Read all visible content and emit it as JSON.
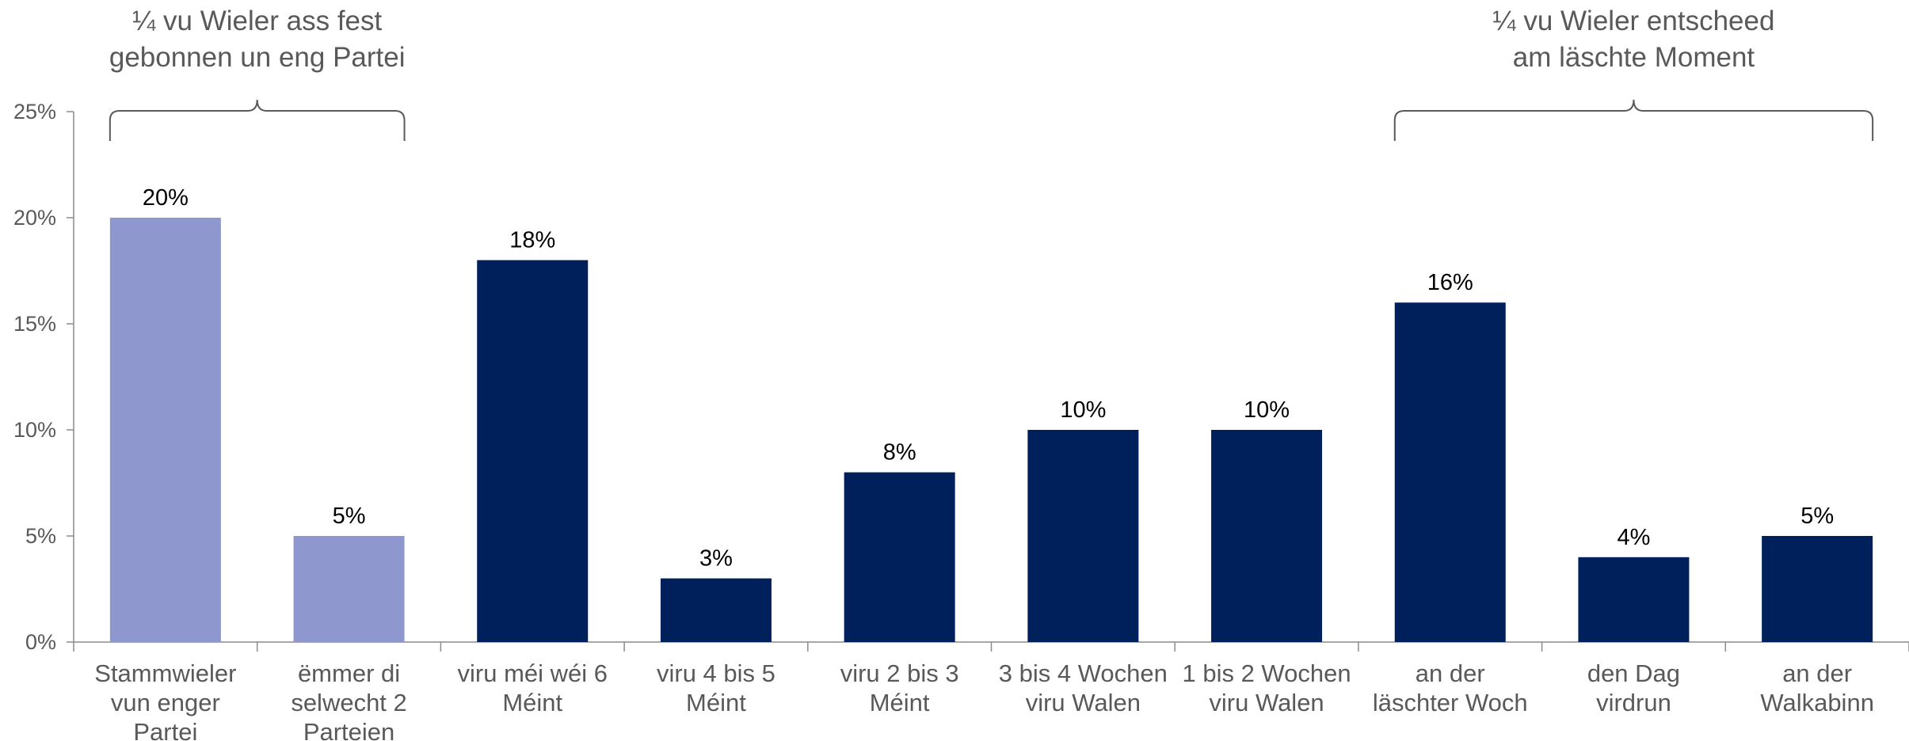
{
  "chart_data": {
    "type": "bar",
    "categories": [
      [
        "Stammwieler",
        "vun enger",
        "Partei"
      ],
      [
        "ëmmer di",
        "selwecht 2",
        "Parteien"
      ],
      [
        "viru méi wéi 6",
        "Méint"
      ],
      [
        "viru 4 bis 5",
        "Méint"
      ],
      [
        "viru 2 bis 3",
        "Méint"
      ],
      [
        "3 bis 4 Wochen",
        "viru Walen"
      ],
      [
        "1 bis 2 Wochen",
        "viru Walen"
      ],
      [
        "an der",
        "läschter Woch"
      ],
      [
        "den Dag",
        "virdrun"
      ],
      [
        "an der",
        "Walkabinn"
      ]
    ],
    "values": [
      20,
      5,
      18,
      3,
      8,
      10,
      10,
      16,
      4,
      5
    ],
    "data_labels": [
      "20%",
      "5%",
      "18%",
      "3%",
      "8%",
      "10%",
      "10%",
      "16%",
      "4%",
      "5%"
    ],
    "bar_colors": [
      "#8e98cf",
      "#8e98cf",
      "#00205b",
      "#00205b",
      "#00205b",
      "#00205b",
      "#00205b",
      "#00205b",
      "#00205b",
      "#00205b"
    ],
    "ylim": [
      0,
      25
    ],
    "yticks": [
      0,
      5,
      10,
      15,
      20,
      25
    ],
    "ytick_labels": [
      "0%",
      "5%",
      "10%",
      "15%",
      "20%",
      "25%"
    ],
    "grid": false,
    "legend": "none",
    "annotations": [
      {
        "lines": [
          "¼ vu Wieler ass fest",
          "gebonnen un eng Partei"
        ],
        "brace_from": 0,
        "brace_to": 1
      },
      {
        "lines": [
          "¼ vu Wieler entscheed",
          "am läschte Moment"
        ],
        "brace_from": 7,
        "brace_to": 9
      }
    ]
  },
  "colors": {
    "axis": "#8c8c8c",
    "tick_text": "#595959",
    "label_text": "#000000",
    "brace": "#595959"
  }
}
